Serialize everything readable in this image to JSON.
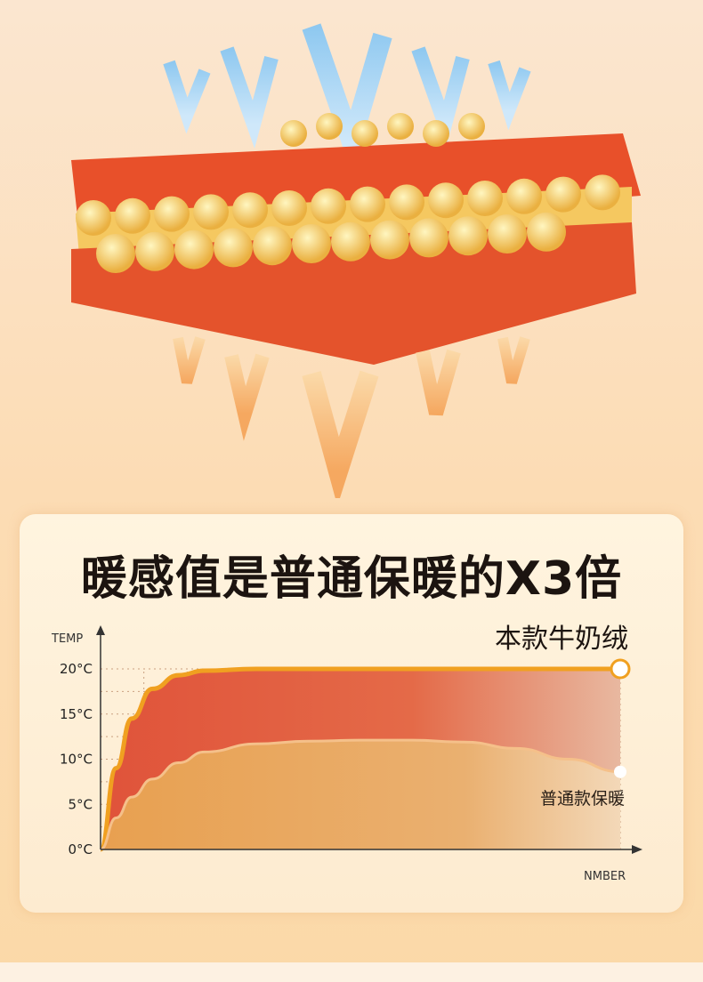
{
  "headline": "暖感值是普通保暖的X3倍",
  "chart_data": {
    "type": "area",
    "ylabel": "TEMP",
    "xlabel": "NMBER",
    "ylim": [
      0,
      20
    ],
    "yticks": [
      "0°C",
      "5°C",
      "10°C",
      "15°C",
      "20°C"
    ],
    "ytick_values": [
      0,
      5,
      10,
      15,
      20
    ],
    "grid": true,
    "x": [
      0,
      0.3,
      0.6,
      1,
      1.5,
      2,
      3,
      4,
      5,
      6,
      7,
      8,
      9,
      10
    ],
    "series": [
      {
        "name": "本款牛奶绒",
        "color": "#f0a020",
        "values": [
          0,
          9,
          14.5,
          17.8,
          19.3,
          19.8,
          20,
          20,
          20,
          20,
          20,
          20,
          20,
          20
        ]
      },
      {
        "name": "普通款保暖",
        "color": "#f5c08a",
        "values": [
          0,
          3.5,
          5.8,
          7.8,
          9.6,
          10.8,
          11.7,
          12,
          12.1,
          12.1,
          11.9,
          11.2,
          10,
          8.6
        ]
      }
    ]
  },
  "colors": {
    "fill_top": "#e0533a",
    "fill_bottom": "#e8a050",
    "background": "#fbe2c4"
  }
}
